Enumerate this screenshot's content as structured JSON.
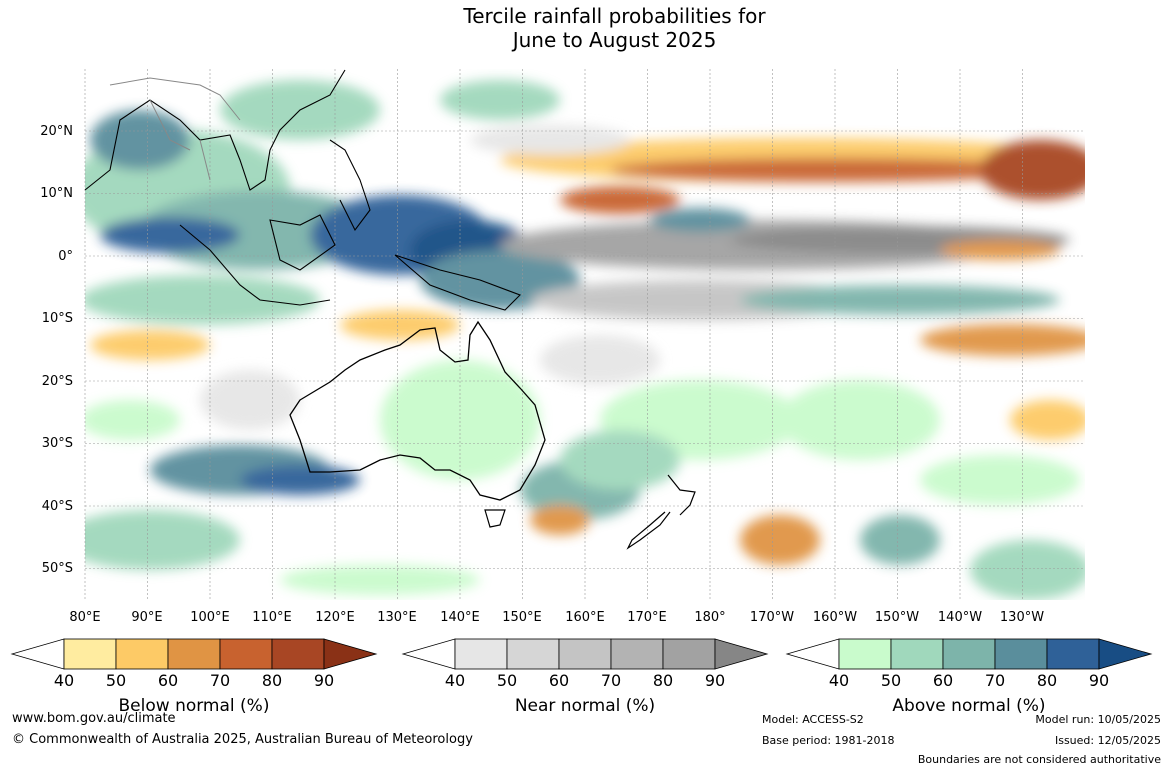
{
  "title": {
    "line1": "Tercile rainfall probabilities for",
    "line2": "June to August 2025"
  },
  "map": {
    "lat_labels": [
      "20°N",
      "10°N",
      "0°",
      "10°S",
      "20°S",
      "30°S",
      "40°S",
      "50°S"
    ],
    "lon_labels": [
      "80°E",
      "90°E",
      "100°E",
      "110°E",
      "120°E",
      "130°E",
      "140°E",
      "150°E",
      "160°E",
      "170°E",
      "180°",
      "170°W",
      "160°W",
      "150°W",
      "140°W",
      "130°W"
    ]
  },
  "legends": [
    {
      "title": "Below normal (%)",
      "ticks": [
        "40",
        "50",
        "60",
        "70",
        "80",
        "90"
      ],
      "colors": [
        "#ffeca0",
        "#fdca66",
        "#e09444",
        "#c8622f",
        "#a84624",
        "#8a3116"
      ]
    },
    {
      "title": "Near normal (%)",
      "ticks": [
        "40",
        "50",
        "60",
        "70",
        "80",
        "90"
      ],
      "colors": [
        "#e6e6e6",
        "#d6d6d6",
        "#c4c4c4",
        "#b3b3b3",
        "#a2a2a2",
        "#868686"
      ]
    },
    {
      "title": "Above normal (%)",
      "ticks": [
        "40",
        "50",
        "60",
        "70",
        "80",
        "90"
      ],
      "colors": [
        "#c9fbcc",
        "#a0d8bc",
        "#7db4aa",
        "#5a8e9c",
        "#2f6198",
        "#184d84"
      ]
    }
  ],
  "footer": {
    "url": "www.bom.gov.au/climate",
    "copyright": "© Commonwealth of Australia 2025, Australian Bureau of Meteorology",
    "model": "Model: ACCESS-S2",
    "base_period": "Base period: 1981-2018",
    "model_run": "Model run: 10/05/2025",
    "issued": "Issued: 12/05/2025",
    "disclaimer": "Boundaries are not considered authoritative"
  }
}
